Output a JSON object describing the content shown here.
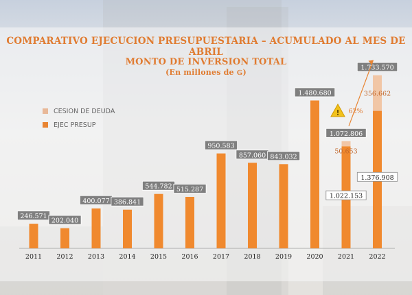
{
  "header": {
    "title": "COMPARATIVO EJECUCION PRESUPUESTARIA – ACUMULADO AL MES DE ABRIL",
    "subtitle": "MONTO DE INVERSION TOTAL",
    "unit": "(En millones de ₲)"
  },
  "legend": {
    "items": [
      {
        "label": "CESION DE DEUDA",
        "color": "#E8B898"
      },
      {
        "label": "EJEC PRESUP",
        "color": "#E88432"
      }
    ]
  },
  "colors": {
    "accent": "#E07B30",
    "bar": "#F0892E",
    "debt": "#F1C6A6",
    "label_bg": "#7F7F7F"
  },
  "annotation": {
    "text": "62%",
    "icon": "warning-triangle-icon"
  },
  "chart_data": {
    "type": "bar",
    "title": "MONTO DE INVERSION TOTAL",
    "categories": [
      "2011",
      "2012",
      "2013",
      "2014",
      "2015",
      "2016",
      "2017",
      "2018",
      "2019",
      "2020",
      "2021",
      "2022"
    ],
    "series": [
      {
        "name": "EJEC PRESUP",
        "values": [
          246571,
          202040,
          400077,
          386841,
          544782,
          515287,
          950583,
          857060,
          843032,
          1480680,
          1022153,
          1376908
        ]
      },
      {
        "name": "CESION DE DEUDA",
        "values": [
          0,
          0,
          0,
          0,
          0,
          0,
          0,
          0,
          0,
          0,
          50653,
          356662
        ]
      }
    ],
    "bar_labels": [
      "246.571",
      "202.040",
      "400.077",
      "386.841",
      "544.782",
      "515.287",
      "950.583",
      "857.060",
      "843.032",
      "1.480.680",
      "1.072.806",
      "1.733.570"
    ],
    "inner_labels": {
      "10": {
        "ejec": "1.022.153",
        "deuda": "50.653"
      },
      "11": {
        "ejec": "1.376.908",
        "deuda": "356.662"
      }
    },
    "ylim": [
      0,
      1800000
    ],
    "grid": false,
    "legend_position": "top-left"
  }
}
